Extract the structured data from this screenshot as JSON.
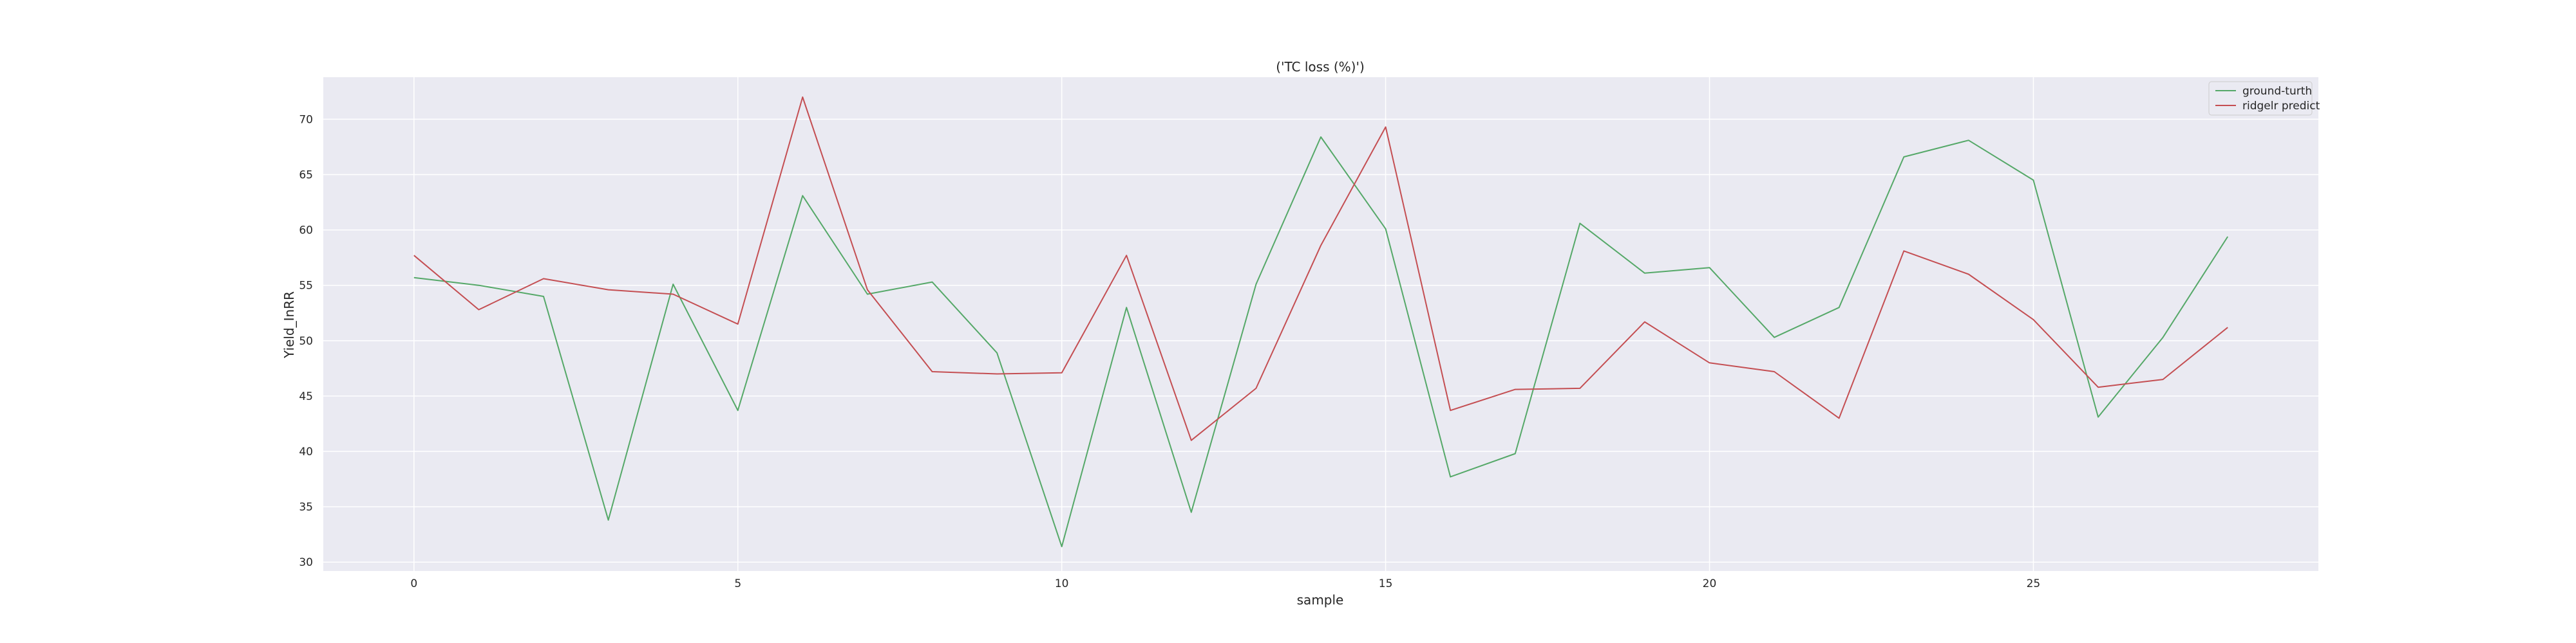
{
  "chart_data": {
    "type": "line",
    "title": "('TC loss (%)')",
    "xlabel": "sample",
    "ylabel": "Yield_InRR",
    "xlim": [
      -1.4,
      29.4
    ],
    "ylim": [
      29.2,
      73.8
    ],
    "xticks": [
      0,
      5,
      10,
      15,
      20,
      25
    ],
    "yticks": [
      30,
      35,
      40,
      45,
      50,
      55,
      60,
      65,
      70
    ],
    "grid": true,
    "legend": "top-right",
    "x": [
      0,
      1,
      2,
      3,
      4,
      5,
      6,
      7,
      8,
      9,
      10,
      11,
      12,
      13,
      14,
      15,
      16,
      17,
      18,
      19,
      20,
      21,
      22,
      23,
      24,
      25,
      26,
      27,
      28
    ],
    "series": [
      {
        "name": "ground-turth",
        "color": "#55a868",
        "values": [
          55.7,
          55.0,
          54.0,
          33.8,
          55.1,
          43.7,
          63.1,
          54.2,
          55.3,
          48.9,
          31.4,
          53.0,
          34.5,
          55.1,
          68.4,
          60.1,
          37.7,
          39.8,
          60.6,
          56.1,
          56.6,
          50.3,
          53.0,
          66.6,
          68.1,
          64.5,
          43.1,
          50.3,
          59.4
        ]
      },
      {
        "name": "ridgelr predict",
        "color": "#c44e52",
        "values": [
          57.7,
          52.8,
          55.6,
          54.6,
          54.2,
          51.5,
          72.0,
          54.6,
          47.2,
          47.0,
          47.1,
          57.7,
          41.0,
          45.7,
          58.6,
          69.3,
          43.7,
          45.6,
          45.7,
          51.7,
          48.0,
          47.2,
          43.0,
          58.1,
          56.0,
          51.9,
          45.8,
          46.5,
          51.2
        ]
      }
    ]
  }
}
